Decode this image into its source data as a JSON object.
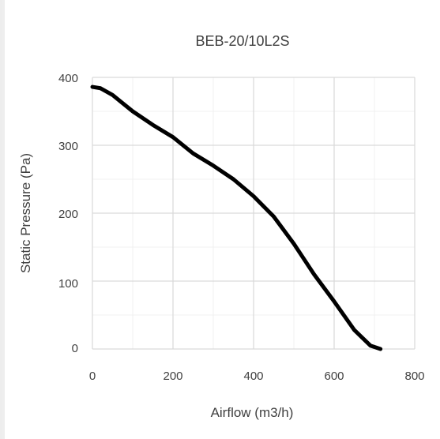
{
  "chart_data": {
    "type": "line",
    "title": "BEB-20/10L2S",
    "xlabel": "Airflow (m3/h)",
    "ylabel": "Static Pressure (Pa)",
    "xlim": [
      0,
      800
    ],
    "ylim": [
      0,
      400
    ],
    "x_ticks": [
      "0",
      "200",
      "400",
      "600",
      "800"
    ],
    "y_ticks": [
      "0",
      "100",
      "200",
      "300",
      "400"
    ],
    "grid": true,
    "legend": "none",
    "series": [
      {
        "color": "#000000",
        "x": [
          0,
          20,
          50,
          100,
          150,
          200,
          250,
          300,
          350,
          400,
          450,
          500,
          550,
          600,
          650,
          690,
          715
        ],
        "y": [
          386,
          384,
          374,
          350,
          330,
          312,
          288,
          270,
          250,
          225,
          195,
          155,
          110,
          70,
          28,
          5,
          0
        ]
      }
    ]
  }
}
